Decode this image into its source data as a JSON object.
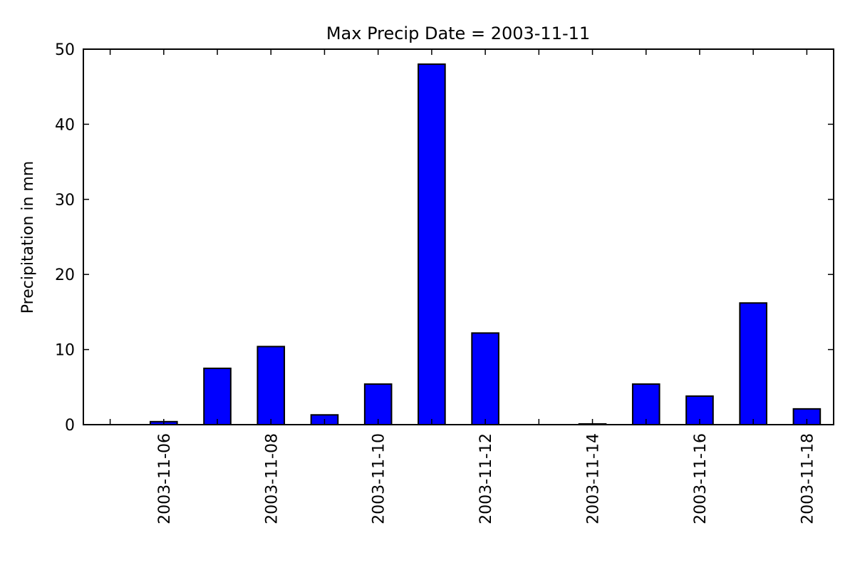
{
  "chart_data": {
    "type": "bar",
    "title": "Max Precip Date = 2003-11-11",
    "xlabel": "",
    "ylabel": "Precipitation in mm",
    "categories": [
      "2003-11-05",
      "2003-11-06",
      "2003-11-07",
      "2003-11-08",
      "2003-11-09",
      "2003-11-10",
      "2003-11-11",
      "2003-11-12",
      "2003-11-13",
      "2003-11-14",
      "2003-11-15",
      "2003-11-16",
      "2003-11-17",
      "2003-11-18"
    ],
    "values": [
      0.0,
      0.4,
      7.5,
      10.4,
      1.3,
      5.4,
      48.0,
      12.2,
      0.0,
      0.1,
      5.4,
      3.8,
      16.2,
      2.1
    ],
    "x_tick_labels": [
      "2003-11-06",
      "2003-11-08",
      "2003-11-10",
      "2003-11-12",
      "2003-11-14",
      "2003-11-16",
      "2003-11-18"
    ],
    "y_ticks": [
      0,
      10,
      20,
      30,
      40,
      50
    ],
    "ylim": [
      0,
      50
    ],
    "grid": false,
    "bar_color": "#0000ff",
    "edge_color": "#000000"
  }
}
